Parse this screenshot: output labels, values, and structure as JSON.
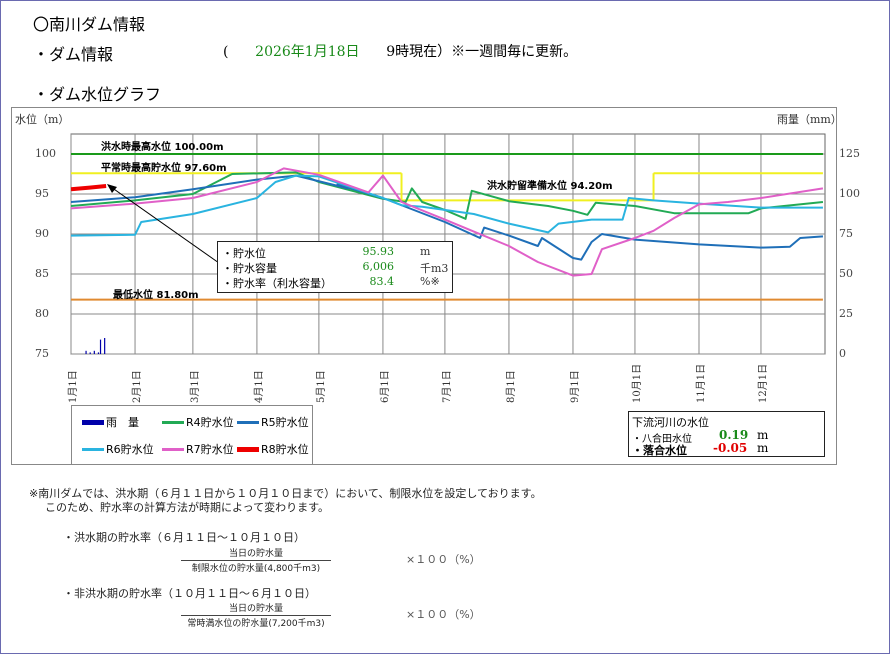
{
  "header": {
    "title": "〇南川ダム情報",
    "dam_info_label": "・ダム情報",
    "update_open": "(",
    "update_date": "2026年1月18日",
    "update_rest": "9時現在）※一週間毎に更新。",
    "graph_label": "・ダム水位グラフ"
  },
  "info_box": {
    "rows": [
      {
        "label": "・貯水位",
        "value": "95.93",
        "unit": "m"
      },
      {
        "label": "・貯水容量",
        "value": "6,006",
        "unit": "千m3"
      },
      {
        "label": "・貯水率（利水容量）",
        "value": "83.4",
        "unit": "%※"
      }
    ],
    "value_color": "#1a8a1a"
  },
  "river": {
    "title": "下流河川の水位",
    "rows": [
      {
        "label": "・八合田水位",
        "value": "0.19",
        "unit": "m",
        "color": "#1a8a1a"
      },
      {
        "label": "・落合水位",
        "value": "-0.05",
        "unit": "m",
        "color": "#e00000"
      }
    ]
  },
  "notes": {
    "line1": "※南川ダムでは、洪水期（６月１１日から１０月１０日まで）において、制限水位を設定しております。",
    "line2": "このため、貯水率の計算方法が時期によって変わります。",
    "flood_title": "・洪水期の貯水率（６月１１日～１０月１０日）",
    "flood_num": "当日の貯水量",
    "flood_den": "制限水位の貯水量(4,800千m3)",
    "flood_mult": "×１００（%）",
    "nonflood_title": "・非洪水期の貯水率（１０月１１日～６月１０日）",
    "nonflood_num": "当日の貯水量",
    "nonflood_den": "常時満水位の貯水量(7,200千m3)",
    "nonflood_mult": "×１００（%）"
  },
  "chart_data": {
    "type": "line",
    "ylabel": "水位（m）",
    "y2label": "雨量（mm）",
    "ylim": [
      75,
      100
    ],
    "y2lim": [
      0,
      125
    ],
    "yticks": [
      "100",
      "95",
      "90",
      "85",
      "80",
      "75"
    ],
    "y2ticks": [
      "125",
      "100",
      "75",
      "50",
      "25",
      "0"
    ],
    "xticks": [
      "1月1日",
      "2月1日",
      "3月1日",
      "4月1日",
      "5月1日",
      "6月1日",
      "7月1日",
      "8月1日",
      "9月1日",
      "10月1日",
      "11月1日",
      "12月1日"
    ],
    "grid": true,
    "legend_position": "bottom-left",
    "reference_lines": [
      {
        "label": "洪水時最高水位 100.00m",
        "segments": [
          [
            "01-01",
            "12-31",
            100.0
          ]
        ],
        "color": "#1a9a1a"
      },
      {
        "label": "平常時最高貯水位 97.60m",
        "segments": [
          [
            "01-01",
            "06-10",
            97.6
          ],
          [
            "10-10",
            "12-31",
            97.6
          ]
        ],
        "color": "#f0f020"
      },
      {
        "label": "洪水貯留準備水位 94.20m",
        "segments": [
          [
            "06-10",
            "10-10",
            94.2
          ]
        ],
        "color": "#f0f020"
      },
      {
        "label": "最低水位 81.80m",
        "segments": [
          [
            "01-01",
            "12-31",
            81.8
          ]
        ],
        "color": "#e08a30"
      }
    ],
    "rain": {
      "name": "雨　量",
      "color": "#0000aa",
      "values": [
        [
          "01-08",
          2
        ],
        [
          "01-10",
          1
        ],
        [
          "01-12",
          2
        ],
        [
          "01-14",
          1
        ],
        [
          "01-15",
          9
        ],
        [
          "01-17",
          10
        ]
      ]
    },
    "series": [
      {
        "name": "R4貯水位",
        "color": "#22aa55",
        "points": [
          [
            "01-01",
            93.5
          ],
          [
            "02-01",
            94.2
          ],
          [
            "03-01",
            95
          ],
          [
            "03-20",
            97.5
          ],
          [
            "04-20",
            97.7
          ],
          [
            "05-01",
            96.5
          ],
          [
            "06-01",
            94.4
          ],
          [
            "06-12",
            94
          ],
          [
            "06-15",
            95.7
          ],
          [
            "06-20",
            94
          ],
          [
            "07-01",
            93
          ],
          [
            "07-11",
            91.9
          ],
          [
            "07-14",
            95.4
          ],
          [
            "08-01",
            94.1
          ],
          [
            "08-20",
            93.5
          ],
          [
            "09-01",
            92.9
          ],
          [
            "09-08",
            92.4
          ],
          [
            "09-12",
            93.9
          ],
          [
            "10-01",
            93.5
          ],
          [
            "10-20",
            92.6
          ],
          [
            "11-25",
            92.6
          ],
          [
            "12-01",
            93.2
          ],
          [
            "12-31",
            94
          ]
        ]
      },
      {
        "name": "R5貯水位",
        "color": "#1f6fb8",
        "points": [
          [
            "01-01",
            94
          ],
          [
            "02-01",
            94.6
          ],
          [
            "03-01",
            95.6
          ],
          [
            "04-01",
            96.8
          ],
          [
            "04-20",
            97.3
          ],
          [
            "05-15",
            95.7
          ],
          [
            "05-10",
            96.2
          ],
          [
            "06-01",
            94.5
          ],
          [
            "07-01",
            91.5
          ],
          [
            "07-18",
            89.5
          ],
          [
            "07-20",
            90.8
          ],
          [
            "08-01",
            89.8
          ],
          [
            "08-15",
            88.5
          ],
          [
            "08-17",
            89.5
          ],
          [
            "09-01",
            87
          ],
          [
            "09-05",
            86.8
          ],
          [
            "09-10",
            89
          ],
          [
            "09-15",
            90
          ],
          [
            "10-01",
            89.3
          ],
          [
            "11-01",
            88.7
          ],
          [
            "12-01",
            88.3
          ],
          [
            "12-15",
            88.4
          ],
          [
            "12-20",
            89.5
          ],
          [
            "12-31",
            89.7
          ]
        ]
      },
      {
        "name": "R6貯水位",
        "color": "#2ab4e0",
        "points": [
          [
            "01-01",
            89.8
          ],
          [
            "02-01",
            89.9
          ],
          [
            "02-04",
            91.5
          ],
          [
            "03-01",
            92.5
          ],
          [
            "04-01",
            94.5
          ],
          [
            "04-10",
            96.5
          ],
          [
            "04-20",
            97.3
          ],
          [
            "05-01",
            97.2
          ],
          [
            "06-01",
            94.5
          ],
          [
            "06-10",
            93.6
          ],
          [
            "06-20",
            93.4
          ],
          [
            "07-15",
            92.5
          ],
          [
            "08-01",
            91.3
          ],
          [
            "08-20",
            90.2
          ],
          [
            "08-25",
            91.3
          ],
          [
            "09-10",
            91.8
          ],
          [
            "09-25",
            91.8
          ],
          [
            "09-28",
            94.5
          ],
          [
            "10-10",
            94.2
          ],
          [
            "11-01",
            93.8
          ],
          [
            "12-01",
            93.3
          ],
          [
            "12-31",
            93.3
          ]
        ]
      },
      {
        "name": "R7貯水位",
        "color": "#e060c8",
        "points": [
          [
            "01-01",
            93.2
          ],
          [
            "02-01",
            93.8
          ],
          [
            "03-01",
            94.5
          ],
          [
            "04-01",
            96.5
          ],
          [
            "04-14",
            98.2
          ],
          [
            "05-01",
            97.4
          ],
          [
            "05-25",
            95.2
          ],
          [
            "06-01",
            97.3
          ],
          [
            "06-10",
            94
          ],
          [
            "07-01",
            91.8
          ],
          [
            "07-15",
            90.3
          ],
          [
            "08-01",
            88.5
          ],
          [
            "08-15",
            86.5
          ],
          [
            "09-01",
            84.8
          ],
          [
            "09-10",
            85
          ],
          [
            "09-15",
            88.1
          ],
          [
            "10-01",
            89.5
          ],
          [
            "10-10",
            90.4
          ],
          [
            "10-20",
            92
          ],
          [
            "11-01",
            93.7
          ],
          [
            "11-15",
            94
          ],
          [
            "12-01",
            94.5
          ],
          [
            "12-31",
            95.7
          ]
        ]
      },
      {
        "name": "R8貯水位",
        "color": "#ee0000",
        "points": [
          [
            "01-01",
            95.6
          ],
          [
            "01-10",
            95.8
          ],
          [
            "01-18",
            96.0
          ]
        ]
      }
    ]
  }
}
